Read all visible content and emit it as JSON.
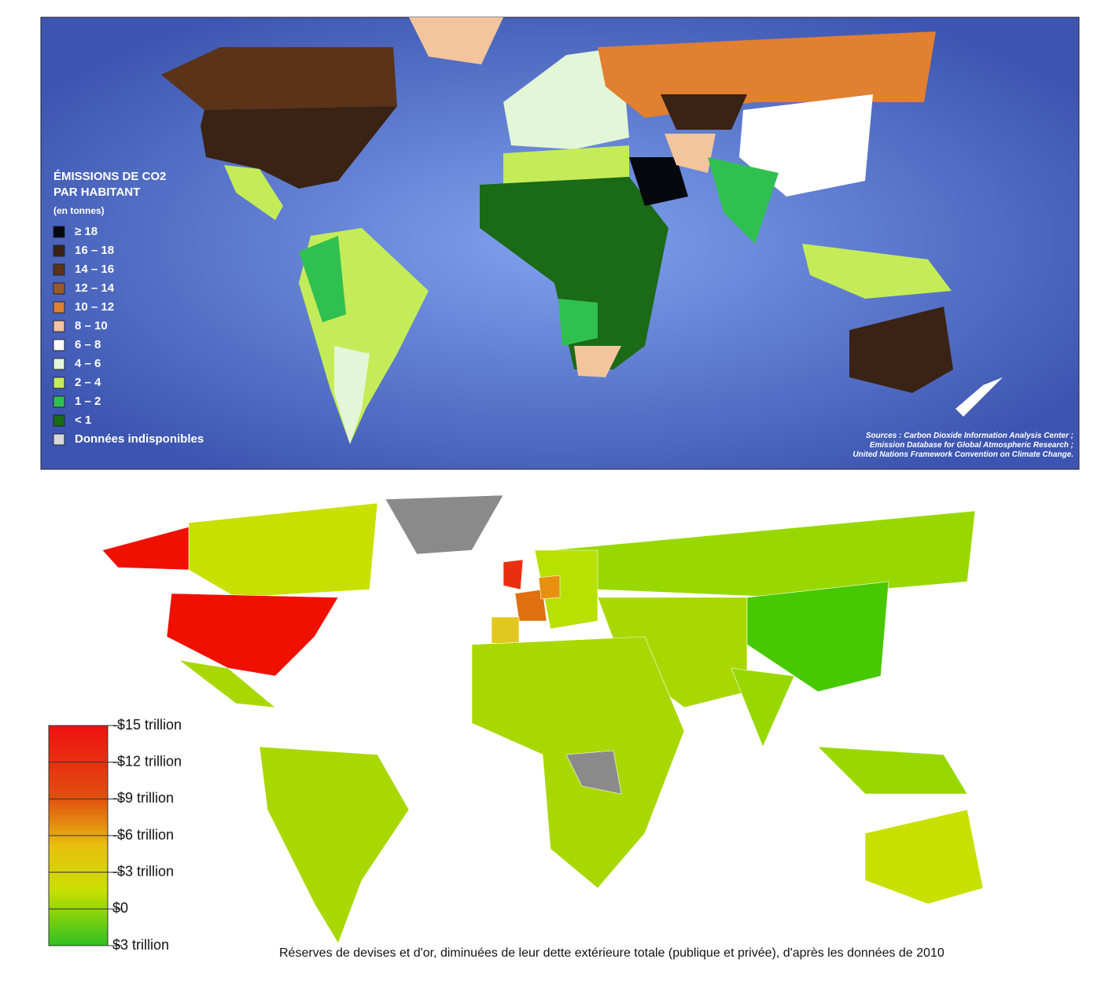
{
  "top_map": {
    "title_lines": [
      "ÉMISSIONS DE CO2",
      "PAR HABITANT"
    ],
    "unit": "(en tonnes)",
    "legend": [
      {
        "label": "≥ 18",
        "color": "#05080c"
      },
      {
        "label": "16 – 18",
        "color": "#3a2214"
      },
      {
        "label": "14 – 16",
        "color": "#5a3318"
      },
      {
        "label": "12 – 14",
        "color": "#9a5a28"
      },
      {
        "label": "10 – 12",
        "color": "#e08030"
      },
      {
        "label": "8 – 10",
        "color": "#f4c49c"
      },
      {
        "label": "6 – 8",
        "color": "#ffffff"
      },
      {
        "label": "4 – 6",
        "color": "#e4f6d8"
      },
      {
        "label": "2 – 4",
        "color": "#c4ec58"
      },
      {
        "label": "1 – 2",
        "color": "#30c050"
      },
      {
        "label": "< 1",
        "color": "#1a6a16"
      },
      {
        "label": "Données indisponibles",
        "color": "#d8d8d8"
      }
    ],
    "sources": [
      "Sources : Carbon Dioxide Information Analysis Center ;",
      "Emission Database for Global Atmospheric Research ;",
      "United Nations Framework Convention on Climate Change."
    ]
  },
  "bottom_map": {
    "colorbar_ticks": [
      {
        "value": -15,
        "label": "-$15 trillion"
      },
      {
        "value": -12,
        "label": "-$12 trillion"
      },
      {
        "value": -9,
        "label": "-$9 trillion"
      },
      {
        "value": -6,
        "label": "-$6 trillion"
      },
      {
        "value": -3,
        "label": "-$3 trillion"
      },
      {
        "value": 0,
        "label": "$0"
      },
      {
        "value": 3,
        "label": "$3 trillion"
      }
    ],
    "caption": "Réserves de devises et d'or, diminuées de leur dette extérieure totale (publique et privée), d'après les données de 2010"
  }
}
